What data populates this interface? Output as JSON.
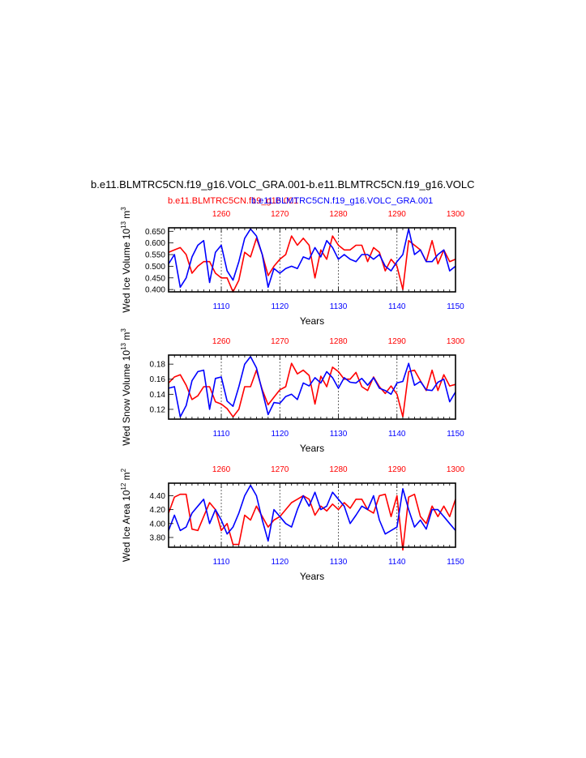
{
  "header": {
    "title": "b.e11.BLMTRC5CN.f19_g16.VOLC_GRA.001-b.e11.BLMTRC5CN.f19_g16.VOLC",
    "case_red": "b.e11.BLMTRC5CN.f19_g16.001",
    "case_blue": "b.e11.BLMTRC5CN.f19_g16.VOLC_GRA.001"
  },
  "colors": {
    "red": "#ff0000",
    "blue": "#0000ff",
    "axis": "#000000",
    "guide": "#444444"
  },
  "chart_data": [
    {
      "type": "line",
      "ylabel_main": "Wed Ice Volume 10",
      "ylabel_exp1": "13",
      "ylabel_unit": " m",
      "ylabel_exp2": "3",
      "xlabel": "Years",
      "ylim": [
        0.39,
        0.665
      ],
      "yticks": [
        0.4,
        0.45,
        0.5,
        0.55,
        0.6,
        0.65
      ],
      "ytick_labels": [
        "0.400",
        "0.450",
        "0.500",
        "0.550",
        "0.600",
        "0.650"
      ],
      "bottom_axis": {
        "range": [
          1101,
          1150
        ],
        "ticks": [
          1110,
          1120,
          1130,
          1140,
          1150
        ],
        "labels": [
          "1110",
          "1120",
          "1130",
          "1140",
          "1150"
        ]
      },
      "top_axis": {
        "range": [
          1251,
          1300
        ],
        "ticks": [
          1260,
          1270,
          1280,
          1290,
          1300
        ],
        "labels": [
          "1260",
          "1270",
          "1280",
          "1290",
          "1300"
        ]
      },
      "series": [
        {
          "color": "red",
          "x_axis": "top",
          "values": [
            0.56,
            0.57,
            0.58,
            0.55,
            0.47,
            0.5,
            0.52,
            0.52,
            0.47,
            0.45,
            0.45,
            0.39,
            0.44,
            0.56,
            0.54,
            0.62,
            0.55,
            0.46,
            0.5,
            0.53,
            0.55,
            0.63,
            0.59,
            0.62,
            0.59,
            0.45,
            0.57,
            0.53,
            0.63,
            0.59,
            0.57,
            0.57,
            0.59,
            0.59,
            0.52,
            0.58,
            0.56,
            0.48,
            0.53,
            0.5,
            0.4,
            0.61,
            0.59,
            0.57,
            0.52,
            0.61,
            0.51,
            0.57,
            0.52,
            0.53
          ]
        },
        {
          "color": "blue",
          "x_axis": "bottom",
          "values": [
            0.51,
            0.55,
            0.41,
            0.45,
            0.54,
            0.59,
            0.61,
            0.43,
            0.56,
            0.59,
            0.48,
            0.44,
            0.52,
            0.62,
            0.66,
            0.63,
            0.55,
            0.41,
            0.49,
            0.47,
            0.49,
            0.5,
            0.49,
            0.54,
            0.53,
            0.58,
            0.54,
            0.61,
            0.58,
            0.53,
            0.55,
            0.53,
            0.52,
            0.55,
            0.55,
            0.53,
            0.55,
            0.5,
            0.48,
            0.52,
            0.55,
            0.66,
            0.55,
            0.57,
            0.52,
            0.52,
            0.55,
            0.57,
            0.48,
            0.5
          ]
        }
      ]
    },
    {
      "type": "line",
      "ylabel_main": "Wed Snow Volume 10",
      "ylabel_exp1": "13",
      "ylabel_unit": " m",
      "ylabel_exp2": "3",
      "xlabel": "Years",
      "ylim": [
        0.107,
        0.192
      ],
      "yticks": [
        0.12,
        0.14,
        0.16,
        0.18
      ],
      "ytick_labels": [
        "0.12",
        "0.14",
        "0.16",
        "0.18"
      ],
      "bottom_axis": {
        "range": [
          1101,
          1150
        ],
        "ticks": [
          1110,
          1120,
          1130,
          1140,
          1150
        ],
        "labels": [
          "1110",
          "1120",
          "1130",
          "1140",
          "1150"
        ]
      },
      "top_axis": {
        "range": [
          1251,
          1300
        ],
        "ticks": [
          1260,
          1270,
          1280,
          1290,
          1300
        ],
        "labels": [
          "1260",
          "1270",
          "1280",
          "1290",
          "1300"
        ]
      },
      "series": [
        {
          "color": "red",
          "x_axis": "top",
          "values": [
            0.155,
            0.163,
            0.166,
            0.152,
            0.133,
            0.138,
            0.15,
            0.15,
            0.13,
            0.127,
            0.121,
            0.11,
            0.12,
            0.15,
            0.15,
            0.172,
            0.146,
            0.126,
            0.136,
            0.146,
            0.15,
            0.181,
            0.167,
            0.172,
            0.165,
            0.127,
            0.164,
            0.15,
            0.176,
            0.17,
            0.16,
            0.16,
            0.169,
            0.15,
            0.145,
            0.163,
            0.15,
            0.141,
            0.151,
            0.14,
            0.11,
            0.17,
            0.172,
            0.158,
            0.145,
            0.172,
            0.145,
            0.166,
            0.151,
            0.153
          ]
        },
        {
          "color": "blue",
          "x_axis": "bottom",
          "values": [
            0.148,
            0.15,
            0.11,
            0.125,
            0.158,
            0.17,
            0.172,
            0.12,
            0.161,
            0.163,
            0.131,
            0.124,
            0.15,
            0.18,
            0.19,
            0.175,
            0.144,
            0.113,
            0.129,
            0.128,
            0.137,
            0.14,
            0.133,
            0.155,
            0.151,
            0.162,
            0.155,
            0.17,
            0.162,
            0.148,
            0.162,
            0.156,
            0.155,
            0.161,
            0.152,
            0.162,
            0.148,
            0.145,
            0.14,
            0.155,
            0.157,
            0.181,
            0.152,
            0.157,
            0.146,
            0.145,
            0.156,
            0.16,
            0.13,
            0.143
          ]
        }
      ]
    },
    {
      "type": "line",
      "ylabel_main": "Wed Ice Area 10",
      "ylabel_exp1": "12",
      "ylabel_unit": " m",
      "ylabel_exp2": "2",
      "xlabel": "Years",
      "ylim": [
        3.66,
        4.58
      ],
      "yticks": [
        3.8,
        4.0,
        4.2,
        4.4
      ],
      "ytick_labels": [
        "3.80",
        "4.00",
        "4.20",
        "4.40"
      ],
      "bottom_axis": {
        "range": [
          1101,
          1150
        ],
        "ticks": [
          1110,
          1120,
          1130,
          1140,
          1150
        ],
        "labels": [
          "1110",
          "1120",
          "1130",
          "1140",
          "1150"
        ]
      },
      "top_axis": {
        "range": [
          1251,
          1300
        ],
        "ticks": [
          1260,
          1270,
          1280,
          1290,
          1300
        ],
        "labels": [
          "1260",
          "1270",
          "1280",
          "1290",
          "1300"
        ]
      },
      "series": [
        {
          "color": "red",
          "x_axis": "top",
          "values": [
            4.15,
            4.38,
            4.42,
            4.42,
            3.92,
            3.9,
            4.1,
            4.3,
            4.2,
            3.9,
            4.0,
            3.7,
            3.7,
            4.12,
            4.05,
            4.25,
            4.1,
            3.95,
            4.05,
            4.1,
            4.2,
            4.3,
            4.35,
            4.4,
            4.35,
            4.12,
            4.25,
            4.18,
            4.28,
            4.2,
            4.3,
            4.22,
            4.35,
            4.35,
            4.2,
            4.15,
            4.4,
            4.42,
            4.1,
            4.4,
            3.62,
            4.38,
            4.42,
            4.1,
            4.0,
            4.25,
            4.1,
            4.25,
            4.1,
            4.35
          ]
        },
        {
          "color": "blue",
          "x_axis": "bottom",
          "values": [
            3.9,
            4.12,
            3.9,
            3.95,
            4.15,
            4.25,
            4.35,
            4.0,
            4.2,
            4.05,
            3.85,
            3.95,
            4.15,
            4.4,
            4.55,
            4.4,
            4.05,
            3.75,
            4.2,
            4.1,
            4.0,
            3.95,
            4.2,
            4.4,
            4.25,
            4.45,
            4.2,
            4.25,
            4.45,
            4.35,
            4.25,
            4.0,
            4.12,
            4.25,
            4.2,
            4.4,
            4.05,
            3.85,
            3.9,
            3.95,
            4.5,
            4.2,
            3.95,
            4.05,
            3.92,
            4.2,
            4.2,
            4.1,
            4.0,
            3.9
          ]
        }
      ]
    }
  ]
}
